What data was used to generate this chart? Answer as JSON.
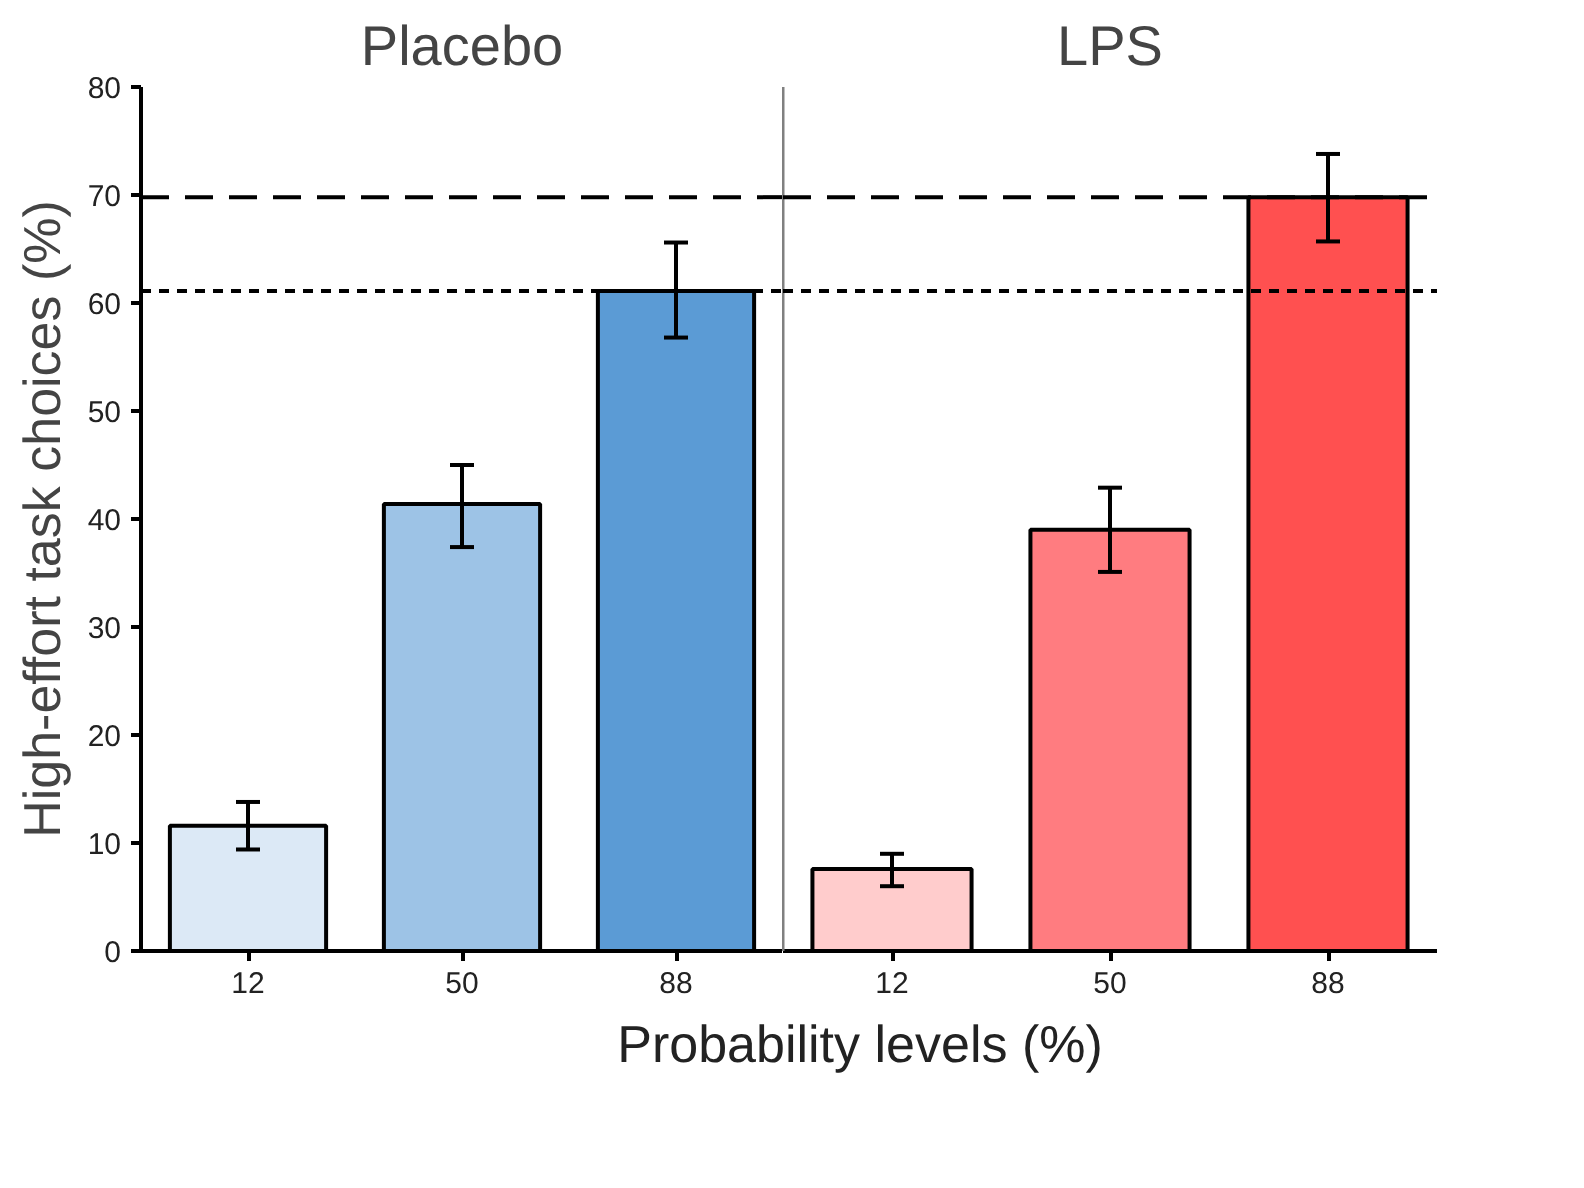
{
  "chart_data": [
    {
      "type": "bar",
      "title": "Placebo",
      "categories": [
        "12",
        "50",
        "88"
      ],
      "values": [
        11.6,
        41.4,
        61.1
      ],
      "colors": [
        "#dce9f6",
        "#9dc3e6",
        "#5b9bd5"
      ],
      "errors": [
        [
          9.4,
          13.8
        ],
        [
          37.4,
          45.0
        ],
        [
          56.8,
          65.6
        ]
      ],
      "ylim": [
        0,
        80
      ],
      "yticks": [
        0,
        10,
        20,
        30,
        40,
        50,
        60,
        70,
        80
      ],
      "xlabel": "Probability levels (%)",
      "ylabel": "High-effort task choices (%)",
      "ref_lines": [
        {
          "axis": "y",
          "value": 69.8,
          "line_style": "dashed",
          "color": "#000000"
        },
        {
          "axis": "y",
          "value": 61.1,
          "line_style": "dotted",
          "color": "#000000"
        }
      ]
    },
    {
      "type": "bar",
      "title": "LPS",
      "categories": [
        "12",
        "50",
        "88"
      ],
      "values": [
        7.6,
        39.0,
        69.8
      ],
      "colors": [
        "#ffcccc",
        "#ff7c80",
        "#ff5050"
      ],
      "errors": [
        [
          6.0,
          9.0
        ],
        [
          35.1,
          42.9
        ],
        [
          65.7,
          73.8
        ]
      ],
      "ylim": [
        0,
        80
      ],
      "tick_labels": "x",
      "ref_lines": [
        {
          "axis": "y",
          "value": 69.8,
          "line_style": "dashed",
          "color": "#000000"
        },
        {
          "axis": "y",
          "value": 61.1,
          "line_style": "dotted",
          "color": "#000000"
        }
      ]
    }
  ]
}
